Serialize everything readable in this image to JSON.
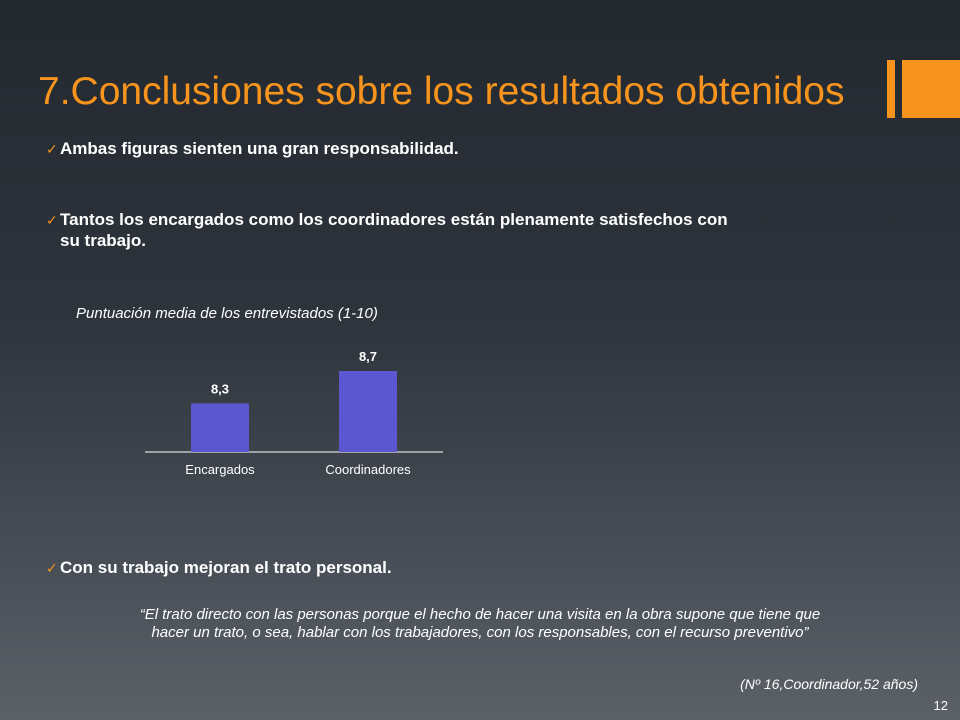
{
  "slide": {
    "title": "7.Conclusiones sobre los resultados obtenidos",
    "accent_color": "#f7941d",
    "bullets": [
      {
        "icon": "checkmark-icon",
        "text": "Ambas figuras sienten  una gran responsabilidad."
      },
      {
        "icon": "checkmark-icon",
        "text_line1": "Tantos los encargados como los coordinadores están plenamente satisfechos con",
        "text_line2": "su trabajo."
      },
      {
        "icon": "checkmark-icon",
        "text": "Con su trabajo mejoran el trato personal."
      }
    ],
    "quote_line1": "“El trato directo con las personas porque el hecho de hacer una visita en la obra supone que tiene que",
    "quote_line2": "hacer un trato, o sea, hablar con los trabajadores, con los responsables, con el recurso preventivo”",
    "attribution": "(Nº 16,Coordinador,52 años)",
    "page_number": "12"
  },
  "chart_data": {
    "type": "bar",
    "title": "Puntuación media de los entrevistados (1-10)",
    "categories": [
      "Encargados",
      "Coordinadores"
    ],
    "values": [
      8.3,
      8.7
    ],
    "data_labels": [
      "8,3",
      "8,7"
    ],
    "bar_color": "#5b57d1",
    "grid": false,
    "legend": "none"
  }
}
